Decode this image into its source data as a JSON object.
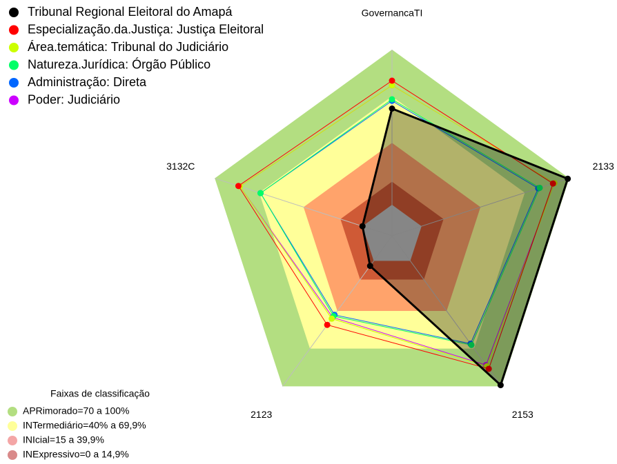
{
  "chart_data": {
    "type": "radar",
    "axes": [
      "GovernancaTI",
      "3132C",
      "2123",
      "2153",
      "2133"
    ],
    "rlim": [
      -20,
      100
    ],
    "series": [
      {
        "name": "Tribunal Regional Eleitoral do Amapá",
        "color": "#000000",
        "fill": true,
        "values": [
          62,
          0,
          4,
          99,
          99
        ]
      },
      {
        "name": "Especialização.da.Justiça: Justiça Eleitoral",
        "color": "#ff0000",
        "values": [
          80,
          84,
          51,
          86,
          89
        ]
      },
      {
        "name": "Área.temática: Tribunal do Judiciário",
        "color": "#ccff00",
        "values": [
          77,
          83,
          46,
          84,
          90
        ]
      },
      {
        "name": "Natureza.Jurídica: Órgão Público",
        "color": "#00ff66",
        "values": [
          68,
          69,
          44,
          67,
          80
        ]
      },
      {
        "name": "Administração: Direta",
        "color": "#0066ff",
        "values": [
          67,
          69,
          43,
          66,
          79
        ]
      },
      {
        "name": "Poder: Judiciário",
        "color": "#cc00ff",
        "values": [
          77,
          83,
          45,
          83,
          90
        ]
      }
    ],
    "bands_title": "Faixas de classificação",
    "bands": [
      {
        "label": "APRimorado=70 a 100%",
        "from": 70,
        "to": 100,
        "fill": "#b3de81",
        "legend_color": "#b3de81"
      },
      {
        "label": "INTermediário=40% a 69,9%",
        "from": 40,
        "to": 69.9,
        "fill": "#ffff99",
        "legend_color": "#ffff99"
      },
      {
        "label": "INIcial=15 a 39,9%",
        "from": 15,
        "to": 39.9,
        "fill": "#ffa36b",
        "legend_color": "#f4a6a6"
      },
      {
        "label": "INExpressivo=0 a 14,9%",
        "from": 0,
        "to": 14.9,
        "fill": "#cf5a36",
        "legend_color": "#d98a8a"
      }
    ],
    "center_fill": "#c0c0c0"
  }
}
